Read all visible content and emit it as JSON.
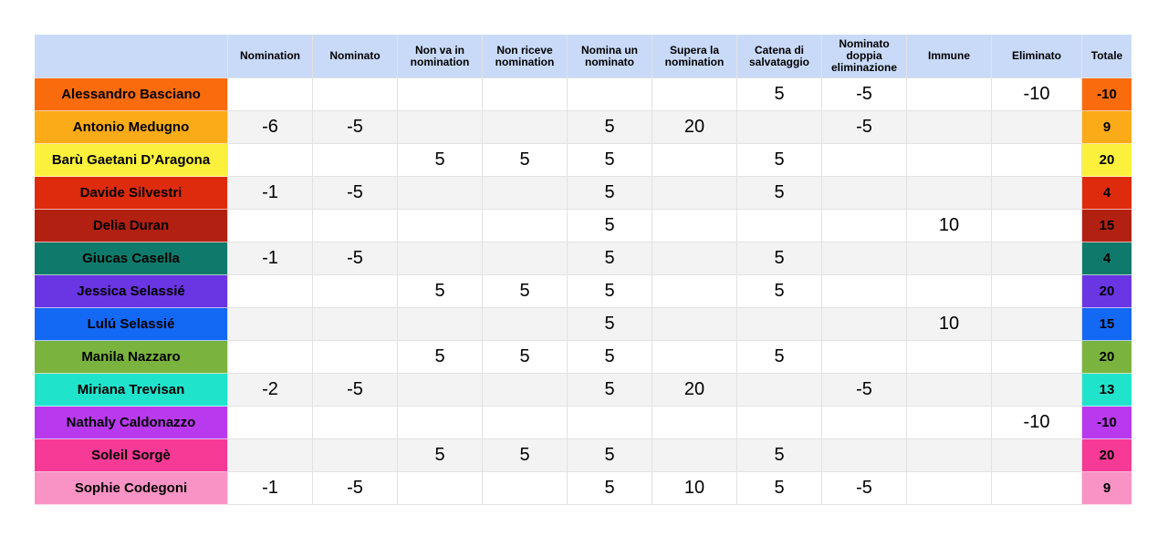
{
  "table": {
    "header_bg": "#c9daf8",
    "stripe_bg": "#f3f3f3",
    "grid_color": "#e2e2e2",
    "text_color": "#000000"
  },
  "chart_data": {
    "type": "table",
    "title": "",
    "columns": [
      "Nomination",
      "Nominato",
      "Non va in nomination",
      "Non riceve nomination",
      "Nomina un nominato",
      "Supera la nomination",
      "Catena di salvataggio",
      "Nominato doppia eliminazione",
      "Immune",
      "Eliminato",
      "Totale"
    ],
    "rows": [
      {
        "name": "Alessandro Basciano",
        "color": "#f96b0d",
        "cells": [
          "",
          "",
          "",
          "",
          "",
          "",
          "5",
          "-5",
          "",
          "-10"
        ],
        "total": "-10"
      },
      {
        "name": "Antonio Medugno",
        "color": "#fbab17",
        "cells": [
          "-6",
          "-5",
          "",
          "",
          "5",
          "20",
          "",
          "-5",
          "",
          ""
        ],
        "total": "9"
      },
      {
        "name": "Barù Gaetani D’Aragona",
        "color": "#fbf13c",
        "cells": [
          "",
          "",
          "5",
          "5",
          "5",
          "",
          "5",
          "",
          "",
          ""
        ],
        "total": "20"
      },
      {
        "name": "Davide Silvestri",
        "color": "#de2b0e",
        "cells": [
          "-1",
          "-5",
          "",
          "",
          "5",
          "",
          "5",
          "",
          "",
          ""
        ],
        "total": "4"
      },
      {
        "name": "Delia Duran",
        "color": "#b22012",
        "cells": [
          "",
          "",
          "",
          "",
          "5",
          "",
          "",
          "",
          "10",
          ""
        ],
        "total": "15"
      },
      {
        "name": "Giucas Casella",
        "color": "#0f7a6b",
        "cells": [
          "-1",
          "-5",
          "",
          "",
          "5",
          "",
          "5",
          "",
          "",
          ""
        ],
        "total": "4"
      },
      {
        "name": "Jessica Selassié",
        "color": "#6a35e2",
        "cells": [
          "",
          "",
          "5",
          "5",
          "5",
          "",
          "5",
          "",
          "",
          ""
        ],
        "total": "20"
      },
      {
        "name": "Lulú Selassié",
        "color": "#1368f4",
        "cells": [
          "",
          "",
          "",
          "",
          "5",
          "",
          "",
          "",
          "10",
          ""
        ],
        "total": "15"
      },
      {
        "name": "Manila Nazzaro",
        "color": "#7ab33e",
        "cells": [
          "",
          "",
          "5",
          "5",
          "5",
          "",
          "5",
          "",
          "",
          ""
        ],
        "total": "20"
      },
      {
        "name": "Miriana Trevisan",
        "color": "#20e3cc",
        "cells": [
          "-2",
          "-5",
          "",
          "",
          "5",
          "20",
          "",
          "-5",
          "",
          ""
        ],
        "total": "13"
      },
      {
        "name": "Nathaly Caldonazzo",
        "color": "#b93aee",
        "cells": [
          "",
          "",
          "",
          "",
          "",
          "",
          "",
          "",
          "",
          "-10"
        ],
        "total": "-10"
      },
      {
        "name": "Soleil Sorgè",
        "color": "#f63a96",
        "cells": [
          "",
          "",
          "5",
          "5",
          "5",
          "",
          "5",
          "",
          "",
          ""
        ],
        "total": "20"
      },
      {
        "name": "Sophie Codegoni",
        "color": "#fa93c5",
        "cells": [
          "-1",
          "-5",
          "",
          "",
          "5",
          "10",
          "5",
          "-5",
          "",
          ""
        ],
        "total": "9"
      }
    ]
  }
}
